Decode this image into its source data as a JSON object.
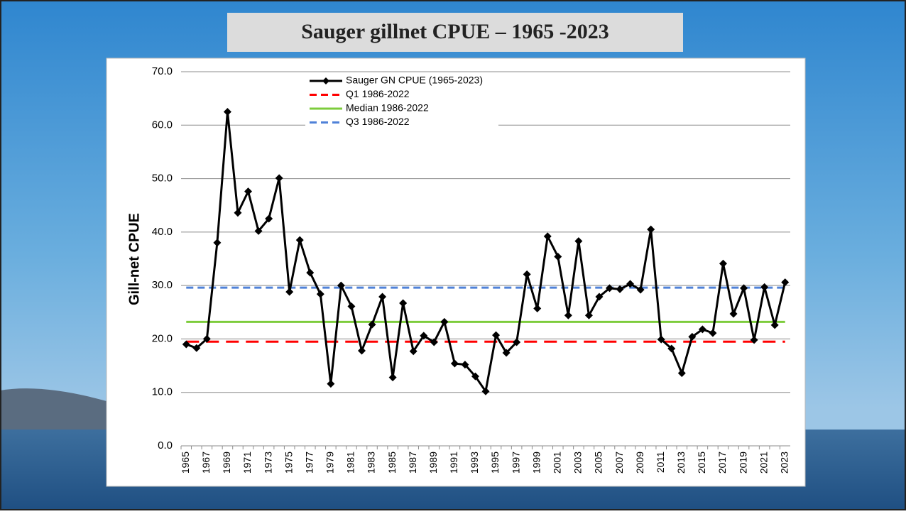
{
  "chart_data": {
    "type": "line",
    "title": "Sauger gillnet CPUE – 1965 -2023",
    "y_label": "Gill-net CPUE",
    "categories": [
      "1965",
      null,
      "1967",
      null,
      "1969",
      null,
      "1971",
      null,
      "1973",
      null,
      "1975",
      null,
      "1977",
      null,
      "1979",
      null,
      "1981",
      null,
      "1983",
      null,
      "1985",
      null,
      "1987",
      null,
      "1989",
      null,
      "1991",
      null,
      "1993",
      null,
      "1995",
      null,
      "1997",
      null,
      "1999",
      null,
      "2001",
      null,
      "2003",
      null,
      "2005",
      null,
      "2007",
      null,
      "2009",
      null,
      "2011",
      null,
      "2013",
      null,
      "2015",
      null,
      "2017",
      null,
      "2019",
      null,
      "2021",
      null,
      "2023"
    ],
    "series": [
      {
        "name": "Sauger GN CPUE (1965-2023)",
        "color": "#000000",
        "values": [
          19.0,
          18.3,
          20.0,
          38.0,
          62.5,
          43.6,
          47.6,
          40.2,
          42.5,
          50.1,
          28.8,
          38.5,
          32.4,
          28.4,
          11.6,
          30.0,
          26.1,
          17.8,
          22.7,
          27.9,
          12.8,
          26.7,
          17.7,
          20.6,
          19.4,
          23.2,
          15.4,
          15.2,
          13.0,
          10.2,
          20.7,
          17.4,
          19.4,
          32.1,
          25.7,
          39.2,
          35.4,
          24.4,
          38.3,
          24.4,
          27.9,
          29.5,
          29.3,
          30.3,
          29.2,
          40.5,
          19.9,
          18.2,
          13.6,
          20.4,
          21.8,
          21.1,
          34.1,
          24.7,
          29.5,
          19.8,
          29.7,
          22.6,
          30.6
        ]
      }
    ],
    "reference_lines": [
      {
        "name": "Q1 1986-2022",
        "color": "#ff0000",
        "value": 19.5,
        "dashed": true
      },
      {
        "name": "Median 1986-2022",
        "color": "#7dcc3c",
        "value": 23.2,
        "dashed": false
      },
      {
        "name": "Q3 1986-2022",
        "color": "#4f81d8",
        "value": 29.6,
        "dashed": true
      }
    ],
    "ylim": [
      0,
      70
    ],
    "yticks": [
      {
        "value": 0,
        "label": "0.0"
      },
      {
        "value": 10,
        "label": "10.0"
      },
      {
        "value": 20,
        "label": "20.0"
      },
      {
        "value": 30,
        "label": "30.0"
      },
      {
        "value": 40,
        "label": "40.0"
      },
      {
        "value": 50,
        "label": "50.0"
      },
      {
        "value": 60,
        "label": "60.0"
      },
      {
        "value": 70,
        "label": "70.0"
      }
    ],
    "grid": true
  }
}
